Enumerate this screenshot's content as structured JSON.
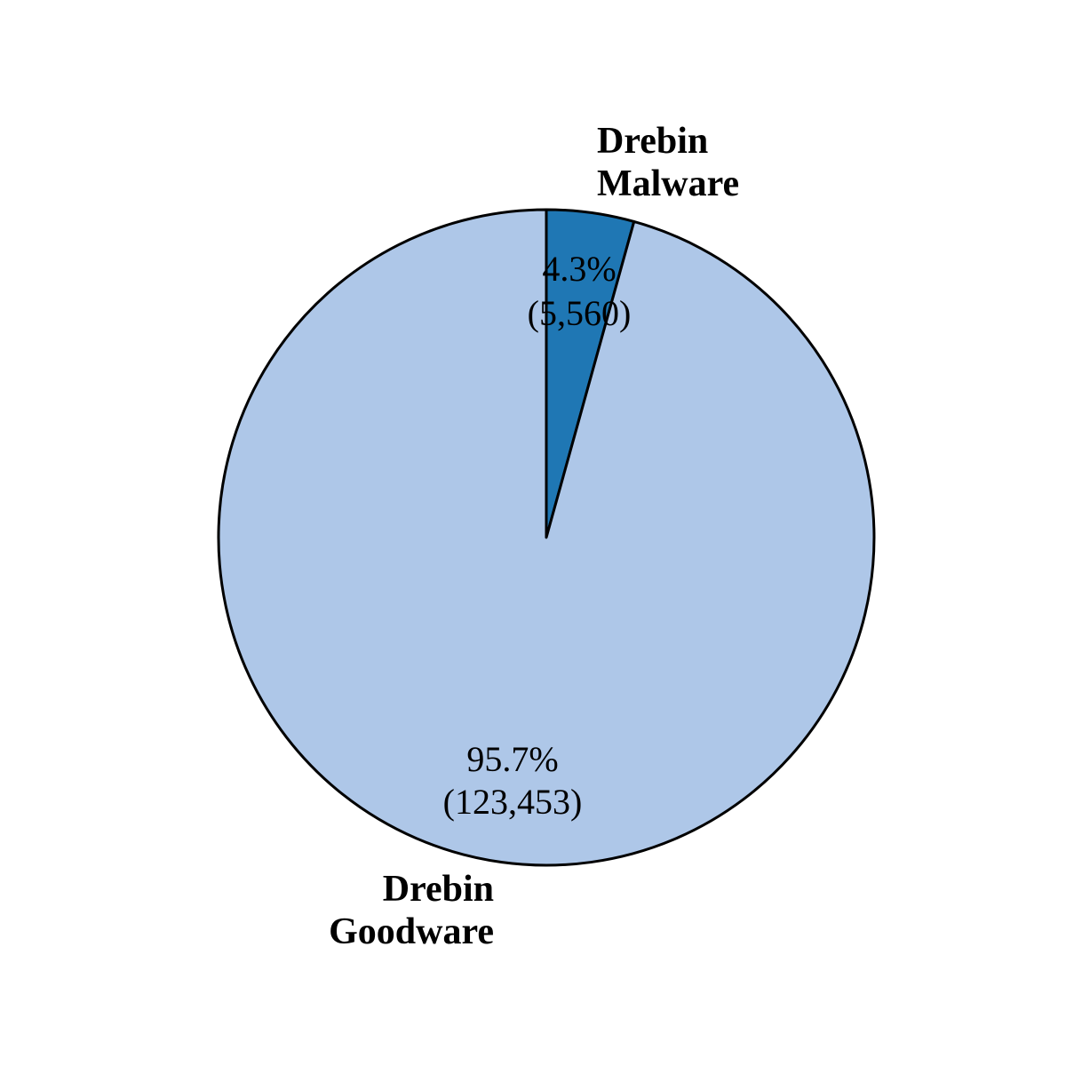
{
  "chart_data": {
    "type": "pie",
    "title": "",
    "slices": [
      {
        "name": "Drebin Malware",
        "label_lines": [
          "Drebin",
          "Malware"
        ],
        "value": 5560,
        "percent": 4.3,
        "percent_label": "4.3%",
        "count_label": "(5,560)",
        "color": "#1f77b4"
      },
      {
        "name": "Drebin Goodware",
        "label_lines": [
          "Drebin",
          "Goodware"
        ],
        "value": 123453,
        "percent": 95.7,
        "percent_label": "95.7%",
        "count_label": "(123,453)",
        "color": "#aec7e8"
      }
    ],
    "start_angle": "12 o'clock",
    "direction": "clockwise",
    "edge_color": "#000000",
    "legend": "none"
  }
}
